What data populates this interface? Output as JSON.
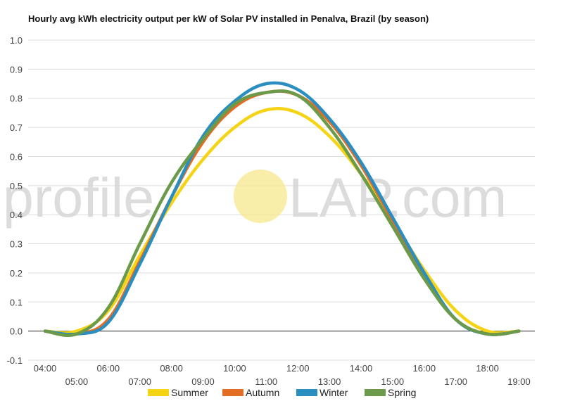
{
  "chart_data": {
    "type": "line",
    "title": "Hourly avg kWh electricity output per kW of Solar PV installed in Penalva, Brazil (by season)",
    "xlabel": "",
    "ylabel": "",
    "x": [
      "04:00",
      "05:00",
      "06:00",
      "07:00",
      "08:00",
      "09:00",
      "10:00",
      "11:00",
      "12:00",
      "13:00",
      "14:00",
      "15:00",
      "16:00",
      "17:00",
      "18:00",
      "19:00"
    ],
    "x_tick_labels_top": [
      "04:00",
      "06:00",
      "08:00",
      "10:00",
      "12:00",
      "14:00",
      "16:00",
      "18:00"
    ],
    "x_tick_labels_bottom": [
      "05:00",
      "07:00",
      "09:00",
      "11:00",
      "13:00",
      "15:00",
      "17:00",
      "19:00"
    ],
    "ylim": [
      -0.1,
      1.0
    ],
    "y_ticks": [
      "-0.1",
      "0.0",
      "0.1",
      "0.2",
      "0.3",
      "0.4",
      "0.5",
      "0.6",
      "0.7",
      "0.8",
      "0.9",
      "1.0"
    ],
    "grid": true,
    "legend_position": "bottom",
    "series": [
      {
        "name": "Summer",
        "color": "#f5d315",
        "values": [
          0.0,
          0.0,
          0.07,
          0.26,
          0.44,
          0.59,
          0.7,
          0.76,
          0.75,
          0.67,
          0.54,
          0.38,
          0.21,
          0.07,
          0.0,
          0.0
        ]
      },
      {
        "name": "Autumn",
        "color": "#e36d25",
        "values": [
          0.0,
          -0.01,
          0.04,
          0.24,
          0.46,
          0.65,
          0.77,
          0.82,
          0.81,
          0.72,
          0.57,
          0.38,
          0.19,
          0.04,
          -0.01,
          0.0
        ]
      },
      {
        "name": "Winter",
        "color": "#2a8fc0",
        "values": [
          0.0,
          -0.01,
          0.03,
          0.23,
          0.46,
          0.67,
          0.79,
          0.85,
          0.83,
          0.73,
          0.58,
          0.39,
          0.2,
          0.04,
          -0.01,
          0.0
        ]
      },
      {
        "name": "Spring",
        "color": "#6b9a4a",
        "values": [
          0.0,
          -0.01,
          0.08,
          0.3,
          0.51,
          0.66,
          0.78,
          0.82,
          0.81,
          0.7,
          0.54,
          0.36,
          0.18,
          0.04,
          -0.01,
          0.0
        ]
      }
    ]
  },
  "watermark": {
    "text_left": "profile",
    "text_right": "LAP.com",
    "sun_color": "#f6e88c"
  },
  "colors": {
    "grid": "#dddddd",
    "zero_line": "#222222"
  }
}
